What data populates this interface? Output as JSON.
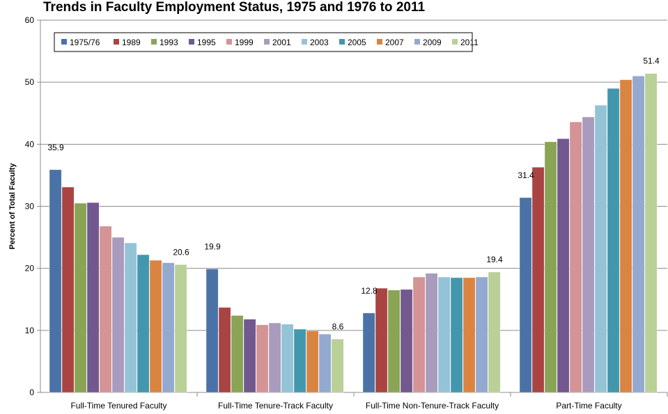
{
  "chart_data": {
    "type": "bar",
    "title": "Trends in Faculty Employment Status, 1975 and 1976 to 2011",
    "xlabel": "",
    "ylabel": "Percent of Total Faculty",
    "ylim": [
      0,
      60
    ],
    "yticks": [
      0,
      10,
      20,
      30,
      40,
      50,
      60
    ],
    "grid": true,
    "legend_position": "top-left",
    "categories": [
      "Full-Time Tenured Faculty",
      "Full-Time Tenure-Track Faculty",
      "Full-Time Non-Tenure-Track Faculty",
      "Part-Time Faculty"
    ],
    "series": [
      {
        "name": "1975/76",
        "color": "#4a72a6",
        "values": [
          35.9,
          19.9,
          12.8,
          31.4
        ]
      },
      {
        "name": "1989",
        "color": "#a94443",
        "values": [
          33.1,
          13.7,
          16.8,
          36.3
        ]
      },
      {
        "name": "1993",
        "color": "#89a455",
        "values": [
          30.5,
          12.4,
          16.5,
          40.4
        ]
      },
      {
        "name": "1995",
        "color": "#71588f",
        "values": [
          30.6,
          11.8,
          16.6,
          40.9
        ]
      },
      {
        "name": "1999",
        "color": "#d49394",
        "values": [
          26.8,
          10.9,
          18.6,
          43.6
        ]
      },
      {
        "name": "2001",
        "color": "#a99bbd",
        "values": [
          25.0,
          11.2,
          19.2,
          44.4
        ]
      },
      {
        "name": "2003",
        "color": "#94c3d6",
        "values": [
          24.1,
          11.0,
          18.6,
          46.3
        ]
      },
      {
        "name": "2005",
        "color": "#4397ad",
        "values": [
          22.2,
          10.2,
          18.5,
          49.0
        ]
      },
      {
        "name": "2007",
        "color": "#da8441",
        "values": [
          21.3,
          9.9,
          18.5,
          50.4
        ]
      },
      {
        "name": "2009",
        "color": "#94a9d0",
        "values": [
          20.9,
          9.4,
          18.6,
          51.0
        ]
      },
      {
        "name": "2011",
        "color": "#b9d096",
        "values": [
          20.6,
          8.6,
          19.4,
          51.4
        ]
      }
    ],
    "data_labels": [
      {
        "series": "1975/76",
        "category": 0,
        "text": "35.9"
      },
      {
        "series": "2011",
        "category": 0,
        "text": "20.6"
      },
      {
        "series": "1975/76",
        "category": 1,
        "text": "19.9"
      },
      {
        "series": "2011",
        "category": 1,
        "text": "8.6"
      },
      {
        "series": "1975/76",
        "category": 2,
        "text": "12.8"
      },
      {
        "series": "2011",
        "category": 2,
        "text": "19.4"
      },
      {
        "series": "1975/76",
        "category": 3,
        "text": "31.4"
      },
      {
        "series": "2011",
        "category": 3,
        "text": "51.4"
      }
    ]
  }
}
